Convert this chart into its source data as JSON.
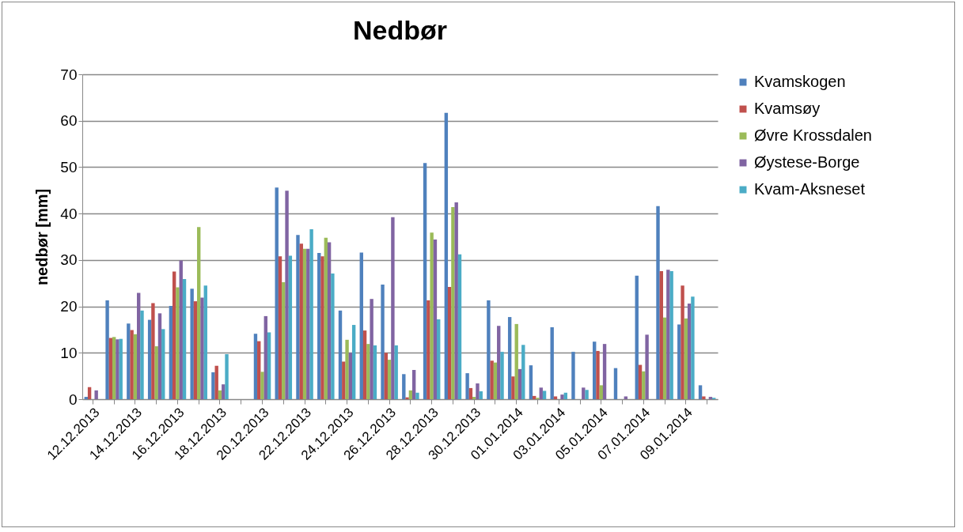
{
  "chart_data": {
    "type": "bar",
    "title": "Nedbør",
    "ylabel": "nedbør [mm]",
    "categories": [
      "12.12.2013",
      null,
      "14.12.2013",
      null,
      "16.12.2013",
      null,
      "18.12.2013",
      null,
      "20.12.2013",
      null,
      "22.12.2013",
      null,
      "24.12.2013",
      null,
      "26.12.2013",
      null,
      "28.12.2013",
      null,
      "30.12.2013",
      null,
      "01.01.2014",
      null,
      "03.01.2014",
      null,
      "05.01.2014",
      null,
      "07.01.2014",
      null,
      "09.01.2014",
      null
    ],
    "series": [
      {
        "name": "Kvamskogen",
        "color": "#4f81bd",
        "values": [
          0.5,
          21.3,
          16.3,
          17.1,
          20.1,
          23.8,
          5.8,
          0,
          14.1,
          45.6,
          35.4,
          31.5,
          19.1,
          31.6,
          24.7,
          5.4,
          50.9,
          61.7,
          5.6,
          21.3,
          17.7,
          7.3,
          15.5,
          10.2,
          12.4,
          6.7,
          26.6,
          41.6,
          16.1,
          3.0
        ]
      },
      {
        "name": "Kvamsøy",
        "color": "#c0504d",
        "values": [
          2.6,
          13.2,
          14.9,
          20.7,
          27.5,
          21.1,
          7.2,
          0,
          12.5,
          30.8,
          33.5,
          30.8,
          8.1,
          14.8,
          10.0,
          0.4,
          21.3,
          24.2,
          2.4,
          8.3,
          4.9,
          0.7,
          0.6,
          0,
          10.4,
          0,
          7.4,
          27.6,
          24.5,
          0.6
        ]
      },
      {
        "name": "Øvre Krossdalen",
        "color": "#9bbb59",
        "values": [
          0,
          13.4,
          14.0,
          11.4,
          24.1,
          37.1,
          1.9,
          0,
          5.9,
          25.2,
          32.4,
          34.8,
          12.8,
          11.9,
          8.5,
          1.9,
          35.9,
          41.4,
          0.5,
          7.9,
          16.2,
          0.3,
          0,
          0,
          3.0,
          0,
          6.0,
          17.6,
          17.4,
          0
        ]
      },
      {
        "name": "Øystese-Borge",
        "color": "#8064a2",
        "values": [
          1.9,
          12.9,
          22.9,
          18.5,
          29.9,
          21.9,
          3.2,
          0,
          17.9,
          44.9,
          32.4,
          33.8,
          10.0,
          21.6,
          39.2,
          6.3,
          34.4,
          42.4,
          3.4,
          15.8,
          6.5,
          2.5,
          1.0,
          2.5,
          11.9,
          0.6,
          13.9,
          27.9,
          20.6,
          0.5
        ]
      },
      {
        "name": "Kvam-Aksneset",
        "color": "#4bacc6",
        "values": [
          0,
          13.0,
          19.1,
          15.1,
          25.9,
          24.5,
          9.7,
          0,
          14.4,
          30.9,
          36.6,
          27.1,
          16.0,
          11.6,
          11.6,
          1.4,
          17.2,
          31.2,
          1.7,
          10.2,
          11.7,
          1.8,
          1.4,
          2.0,
          0,
          0,
          0,
          27.6,
          22.1,
          0.3
        ]
      }
    ],
    "ylim": [
      0,
      70
    ],
    "yticks": [
      0,
      10,
      20,
      30,
      40,
      50,
      60,
      70
    ],
    "grid": "y",
    "legend": "right"
  }
}
